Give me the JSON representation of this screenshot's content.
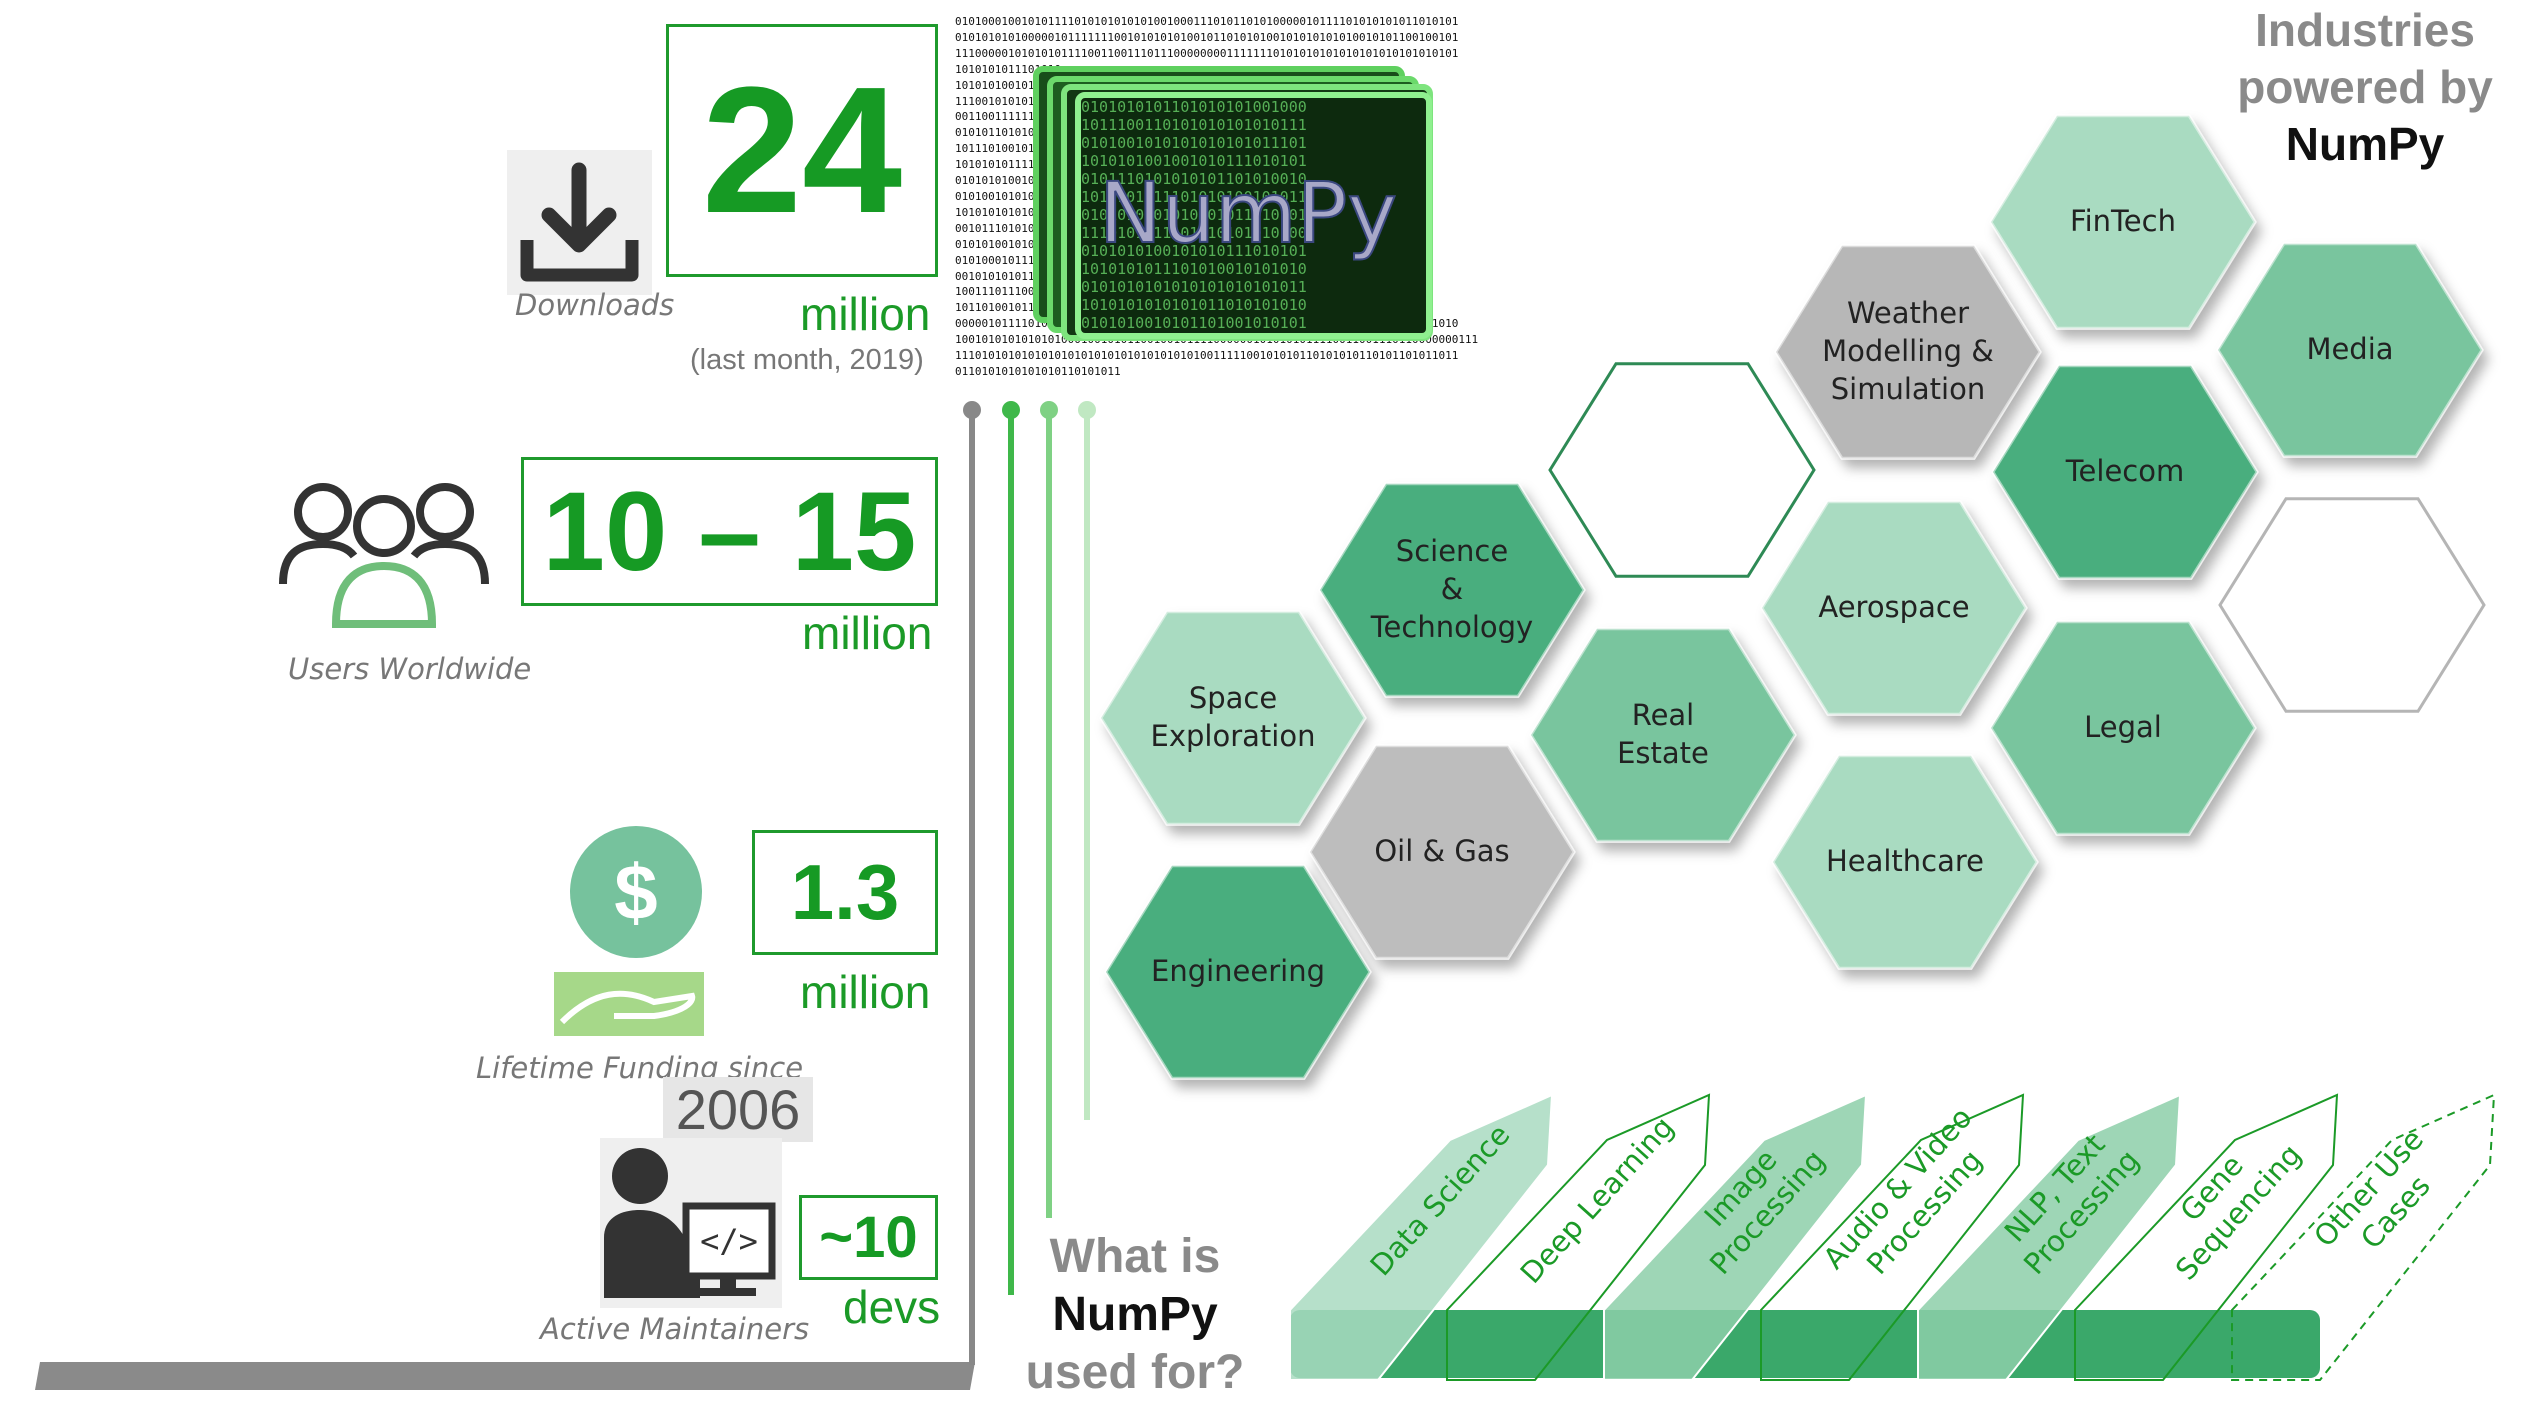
{
  "colors": {
    "green": "#1b9a27",
    "hex_dark": "#4aae7e",
    "hex_mid": "#79c59e",
    "hex_light": "#a9dbc1",
    "gray": "#bdbdbd"
  },
  "stats": {
    "downloads": {
      "value": "24",
      "unit": "million",
      "note": "(last month, 2019)",
      "caption": "Downloads",
      "icon": "download-icon"
    },
    "users": {
      "value": "10 – 15",
      "unit": "million",
      "caption": "Users Worldwide",
      "icon": "users-icon"
    },
    "funding": {
      "value": "1.3",
      "unit": "million",
      "caption": "Lifetime Funding since",
      "year": "2006",
      "icon": "funding-icon"
    },
    "devs": {
      "value": "~10",
      "unit": "devs",
      "caption": "Active Maintainers",
      "icon": "developer-icon"
    }
  },
  "logo": {
    "text": "NumPy",
    "binary_rows": [
      "0101000100101011110101010101010010001110101101010000010111101010101011010101",
      "0101010101000001011111110010101010100101101010100101010101010010101100100101",
      "1110000010101010111100110011101110000000011111110101010101010101010101010101",
      "1010101011101010",
      "1010101001010111",
      "1110010101010111",
      "0011001111111001",
      "0101011010100000",
      "1011101001010010",
      "1010101011111101",
      "0101010100101101",
      "0101001010101010",
      "1010101010101101",
      "0010111010101010",
      "0101010010101101",
      "0101000101111111",
      "0010101010111001",
      "1001110111001010",
      "1011010010110101",
      "0000010111101010101010101001010001110101101010000010111101010101011010101010",
      "1001010101010101000100101011001001011110000001010101011110011001110110000000111",
      "1110101010101010101010101010101010101001111100101010110101010110101101011011",
      "0110101010101010110101011"
    ]
  },
  "industries": {
    "title_line1": "Industries",
    "title_line2": "powered by",
    "title_line3": "NumPy",
    "hexes": [
      "FinTech",
      "Media",
      "Weather\nModelling &\nSimulation",
      "Telecom",
      "Aerospace",
      "Science\n&\nTechnology",
      "Real\nEstate",
      "Space\nExploration",
      "Legal",
      "Oil & Gas",
      "Healthcare",
      "Engineering"
    ]
  },
  "uses": {
    "question_line1": "What is",
    "question_line2": "NumPy",
    "question_line3": "used for?",
    "items": [
      "Data Science",
      "Deep Learning",
      "Image Processing",
      "Audio & Video\nProcessing",
      "NLP, Text\nProcessing",
      "Gene Sequencing",
      "Other Use Cases"
    ]
  }
}
